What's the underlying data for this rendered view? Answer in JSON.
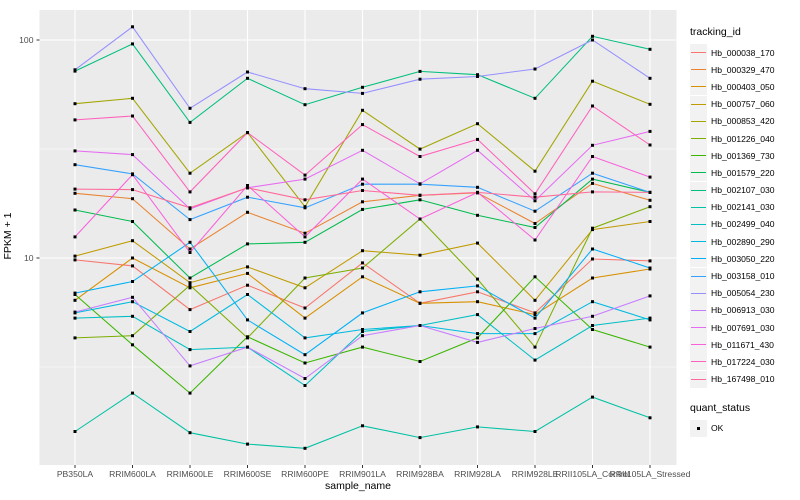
{
  "chart_data": {
    "type": "line",
    "title": "",
    "xlabel": "sample_name",
    "ylabel": "FPKM + 1",
    "y_scale": "log10",
    "y_ticks": [
      10,
      100
    ],
    "y_minor": [
      3.162,
      31.62
    ],
    "ylim": [
      1.1,
      140
    ],
    "panel_bg": "#EBEBEB",
    "grid_color": "#FFFFFF",
    "point_shape": "filled-square",
    "point_color": "#000000",
    "tick_label_color": "#4D4D4D",
    "legend": {
      "color_title": "tracking_id",
      "shape_title": "quant_status",
      "shape_items": [
        {
          "label": "OK"
        }
      ]
    },
    "categories": [
      "PB350LA",
      "RRIM600LA",
      "RRIM600LE",
      "RRIM600SE",
      "RRIM600PE",
      "RRIM901LA",
      "RRIM928BA",
      "RRIM928LA",
      "RRIM928LE",
      "RRII105LA_Control",
      "RRII105LA_Stressed"
    ],
    "series": [
      {
        "name": "Hb_000038_170",
        "color": "#F8766D",
        "values": [
          9.8,
          9.2,
          5.8,
          7.5,
          5.9,
          9.5,
          6.2,
          7.0,
          5.6,
          9.9,
          9.7
        ]
      },
      {
        "name": "Hb_000329_470",
        "color": "#EA8331",
        "values": [
          19.8,
          18.7,
          11.0,
          16.2,
          13.0,
          18.1,
          19.4,
          19.9,
          14.4,
          22.0,
          18.4
        ]
      },
      {
        "name": "Hb_000403_050",
        "color": "#D89000",
        "values": [
          6.4,
          10.0,
          7.3,
          8.5,
          5.3,
          8.2,
          6.2,
          6.3,
          5.5,
          8.1,
          8.9
        ]
      },
      {
        "name": "Hb_000757_060",
        "color": "#C09B00",
        "values": [
          10.2,
          12.0,
          7.7,
          9.1,
          7.3,
          10.8,
          10.3,
          11.7,
          6.4,
          13.5,
          14.7
        ]
      },
      {
        "name": "Hb_000853_420",
        "color": "#A3A500",
        "values": [
          51,
          54,
          24.5,
          37.6,
          17.2,
          47.6,
          31.6,
          41.3,
          25,
          64.7,
          50.7
        ]
      },
      {
        "name": "Hb_001226_040",
        "color": "#7CAE00",
        "values": [
          4.3,
          4.4,
          7.5,
          4.3,
          8.1,
          9.0,
          15.1,
          8.0,
          3.9,
          13.7,
          17.2
        ]
      },
      {
        "name": "Hb_001369_730",
        "color": "#39B600",
        "values": [
          6.8,
          4.0,
          2.4,
          4.35,
          3.3,
          3.9,
          3.35,
          4.3,
          8.2,
          4.7,
          3.9
        ]
      },
      {
        "name": "Hb_001579_220",
        "color": "#00BB4E",
        "values": [
          16.6,
          14.7,
          8.1,
          11.6,
          11.8,
          16.7,
          18.5,
          15.7,
          13.8,
          23,
          20
        ]
      },
      {
        "name": "Hb_002107_030",
        "color": "#00BF7D",
        "values": [
          72,
          96,
          41.9,
          66.7,
          50.5,
          60.7,
          71.8,
          69.3,
          54,
          104,
          90.6
        ]
      },
      {
        "name": "Hb_002141_030",
        "color": "#00C1A3",
        "values": [
          1.6,
          2.4,
          1.58,
          1.4,
          1.34,
          1.7,
          1.5,
          1.68,
          1.6,
          2.3,
          1.85
        ]
      },
      {
        "name": "Hb_002499_040",
        "color": "#00BFC4",
        "values": [
          5.3,
          5.4,
          3.8,
          3.9,
          2.6,
          4.6,
          4.9,
          5.5,
          3.4,
          4.9,
          5.3
        ]
      },
      {
        "name": "Hb_002890_290",
        "color": "#00BAE0",
        "values": [
          5.6,
          6.3,
          4.6,
          6.8,
          4.3,
          4.7,
          4.9,
          4.5,
          4.5,
          6.3,
          5.2
        ]
      },
      {
        "name": "Hb_003050_220",
        "color": "#00B0F6",
        "values": [
          6.9,
          7.8,
          11.8,
          5.2,
          3.6,
          5.6,
          7.0,
          7.45,
          5.3,
          11.0,
          9.0
        ]
      },
      {
        "name": "Hb_003158_010",
        "color": "#35A2FF",
        "values": [
          26.8,
          24.3,
          15,
          19,
          17,
          21.8,
          21.8,
          21.1,
          16.4,
          24.5,
          20
        ]
      },
      {
        "name": "Hb_005054_230",
        "color": "#9590FF",
        "values": [
          73,
          115,
          48.6,
          71.3,
          59.8,
          56.9,
          66.1,
          68,
          73.6,
          100,
          66.7
        ]
      },
      {
        "name": "Hb_006913_030",
        "color": "#C77CFF",
        "values": [
          5.65,
          6.6,
          3.2,
          3.9,
          2.8,
          4.4,
          4.9,
          4.1,
          4.75,
          5.4,
          6.7
        ]
      },
      {
        "name": "Hb_007691_030",
        "color": "#E76BF3",
        "values": [
          31,
          29.8,
          16.8,
          21,
          23,
          31.2,
          21.9,
          31.2,
          18.3,
          32.9,
          38.1
        ]
      },
      {
        "name": "Hb_011671_430",
        "color": "#FA62DB",
        "values": [
          12.5,
          24.1,
          10.6,
          21.5,
          12.5,
          23,
          15.1,
          20,
          12.1,
          29.2,
          23.5
        ]
      },
      {
        "name": "Hb_017224_030",
        "color": "#FF62BC",
        "values": [
          43,
          44.8,
          20.1,
          37.6,
          24,
          40.9,
          29.2,
          35,
          19.7,
          49.8,
          33
        ]
      },
      {
        "name": "Hb_167498_010",
        "color": "#FF6A98",
        "values": [
          20.7,
          20.6,
          17,
          21,
          18.5,
          20.4,
          19.4,
          20,
          19,
          20.1,
          20
        ]
      }
    ]
  }
}
